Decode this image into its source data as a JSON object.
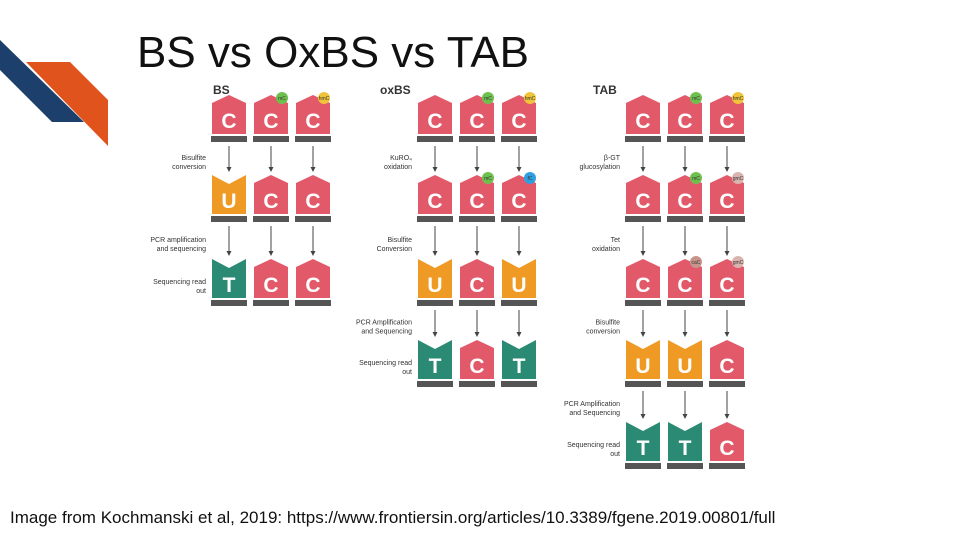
{
  "title": "BS vs OxBS vs TAB",
  "credit": "Image from Kochmanski et al, 2019: https://www.frontiersin.org/articles/10.3389/fgene.2019.00801/full",
  "colors": {
    "C": "#e25a6a",
    "U": "#ee9a24",
    "T": "#2a8a74",
    "base": "#555555",
    "mC": "#6dc04e",
    "hmC": "#f0c43a",
    "fC": "#2f9fe0",
    "gmC": "#d9b4ae",
    "caC": "#c8958c",
    "deco_navy": "#1c3f6b",
    "deco_orange": "#e0531d"
  },
  "panels": [
    {
      "label": "BS",
      "steps": [
        "Bisulfite conversion",
        "PCR amplification and sequencing",
        "Sequencing read out"
      ],
      "rows": [
        [
          {
            "b": "C",
            "shape": "C"
          },
          {
            "b": "C",
            "shape": "C",
            "mark": "mC"
          },
          {
            "b": "C",
            "shape": "C",
            "mark": "hmC"
          }
        ],
        [
          {
            "b": "U",
            "shape": "U"
          },
          {
            "b": "C",
            "shape": "C"
          },
          {
            "b": "C",
            "shape": "C"
          }
        ],
        [
          {
            "b": "T",
            "shape": "T"
          },
          {
            "b": "C",
            "shape": "C"
          },
          {
            "b": "C",
            "shape": "C"
          }
        ]
      ]
    },
    {
      "label": "oxBS",
      "steps": [
        "KuRO₄ oxidation",
        "Bisulfite Conversion",
        "PCR Amplification and Sequencing",
        "Sequencing read out"
      ],
      "rows": [
        [
          {
            "b": "C",
            "shape": "C"
          },
          {
            "b": "C",
            "shape": "C",
            "mark": "mC"
          },
          {
            "b": "C",
            "shape": "C",
            "mark": "hmC"
          }
        ],
        [
          {
            "b": "C",
            "shape": "C"
          },
          {
            "b": "C",
            "shape": "C",
            "mark": "mC"
          },
          {
            "b": "C",
            "shape": "C",
            "mark": "fC"
          }
        ],
        [
          {
            "b": "U",
            "shape": "U"
          },
          {
            "b": "C",
            "shape": "C"
          },
          {
            "b": "U",
            "shape": "U"
          }
        ],
        [
          {
            "b": "T",
            "shape": "T"
          },
          {
            "b": "C",
            "shape": "C"
          },
          {
            "b": "T",
            "shape": "T"
          }
        ]
      ]
    },
    {
      "label": "TAB",
      "steps": [
        "β-GT glucosylation",
        "Tet oxidation",
        "Bisulfite conversion",
        "PCR Amplification and Sequencing",
        "Sequencing read out"
      ],
      "rows": [
        [
          {
            "b": "C",
            "shape": "C"
          },
          {
            "b": "C",
            "shape": "C",
            "mark": "mC"
          },
          {
            "b": "C",
            "shape": "C",
            "mark": "hmC"
          }
        ],
        [
          {
            "b": "C",
            "shape": "C"
          },
          {
            "b": "C",
            "shape": "C",
            "mark": "mC"
          },
          {
            "b": "C",
            "shape": "C",
            "mark": "gmC"
          }
        ],
        [
          {
            "b": "C",
            "shape": "C"
          },
          {
            "b": "C",
            "shape": "C",
            "mark": "caC"
          },
          {
            "b": "C",
            "shape": "C",
            "mark": "gmC"
          }
        ],
        [
          {
            "b": "U",
            "shape": "U"
          },
          {
            "b": "U",
            "shape": "U"
          },
          {
            "b": "C",
            "shape": "C"
          }
        ],
        [
          {
            "b": "T",
            "shape": "T"
          },
          {
            "b": "T",
            "shape": "T"
          },
          {
            "b": "C",
            "shape": "C"
          }
        ]
      ]
    }
  ]
}
